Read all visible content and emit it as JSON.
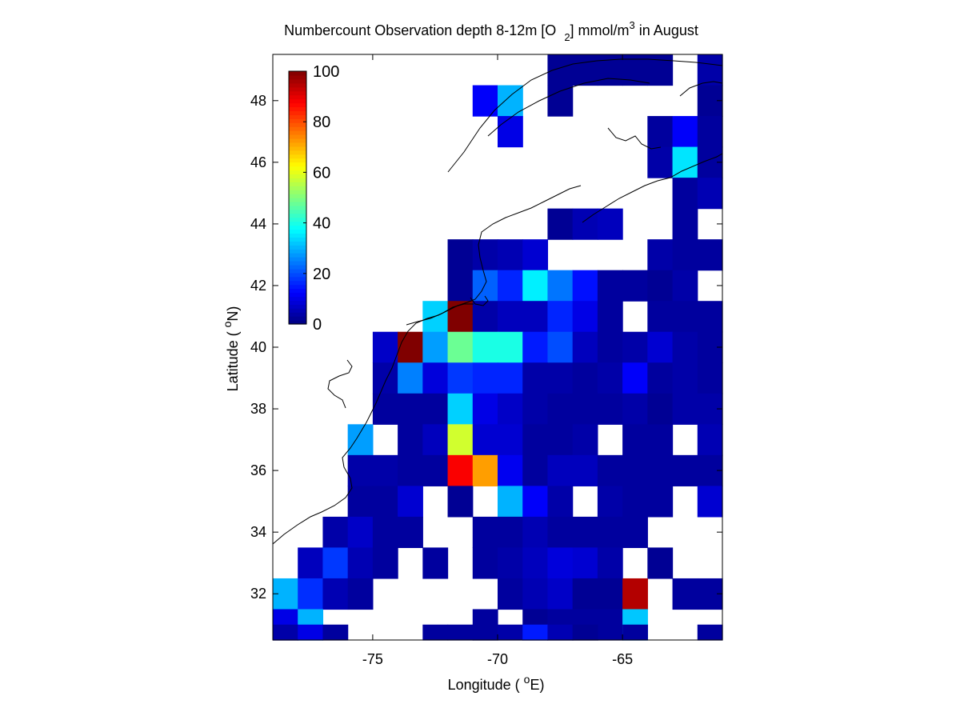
{
  "chart_data": {
    "type": "heatmap",
    "title_parts": {
      "t1": "Numbercount Observation depth 8-12m [O",
      "t2": "2",
      "t3": "] mmol/m",
      "t4": "3",
      "t5": " in August"
    },
    "xlabel_parts": {
      "pre": "Longitude ( ",
      "sup": "o",
      "post": "E)"
    },
    "ylabel_parts": {
      "pre": "Latitude ( ",
      "sup": "o",
      "post": "N)"
    },
    "xlim": [
      -79,
      -61
    ],
    "ylim": [
      30.5,
      49.5
    ],
    "xticks": [
      -75,
      -70,
      -65
    ],
    "yticks": [
      32,
      34,
      36,
      38,
      40,
      42,
      44,
      46,
      48
    ],
    "xtick_labels": [
      "-75",
      "-70",
      "-65"
    ],
    "ytick_labels": [
      "32",
      "34",
      "36",
      "38",
      "40",
      "42",
      "44",
      "46",
      "48"
    ],
    "colorbar": {
      "colormap": "jet",
      "range": [
        0,
        100
      ],
      "ticks": [
        0,
        20,
        40,
        60,
        80,
        100
      ],
      "tick_labels": [
        "0",
        "20",
        "40",
        "60",
        "80",
        "100"
      ]
    },
    "cell_size": [
      1,
      1
    ],
    "x_bin_centers": [
      -78.5,
      -77.5,
      -76.5,
      -75.5,
      -74.5,
      -73.5,
      -72.5,
      -71.5,
      -70.5,
      -69.5,
      -68.5,
      -67.5,
      -66.5,
      -65.5,
      -64.5,
      -63.5,
      -62.5,
      -61.5
    ],
    "y_bin_centers": [
      49,
      48,
      47,
      46,
      45,
      44,
      43,
      42,
      41,
      40,
      39,
      38,
      37,
      36,
      35,
      34,
      33,
      32,
      31,
      30.5
    ],
    "values": [
      [
        null,
        null,
        null,
        null,
        null,
        null,
        null,
        null,
        null,
        null,
        null,
        2,
        2,
        2,
        2,
        2,
        null,
        4
      ],
      [
        null,
        null,
        null,
        null,
        null,
        null,
        null,
        null,
        12,
        30,
        null,
        2,
        null,
        null,
        null,
        null,
        null,
        2
      ],
      [
        null,
        null,
        null,
        null,
        null,
        null,
        null,
        null,
        null,
        10,
        null,
        null,
        null,
        null,
        null,
        3,
        12,
        3
      ],
      [
        null,
        null,
        null,
        null,
        null,
        null,
        null,
        null,
        null,
        null,
        null,
        null,
        null,
        null,
        null,
        4,
        35,
        3
      ],
      [
        null,
        null,
        null,
        null,
        null,
        null,
        null,
        null,
        null,
        null,
        null,
        null,
        null,
        null,
        null,
        null,
        3,
        5
      ],
      [
        null,
        null,
        null,
        null,
        null,
        null,
        null,
        null,
        null,
        null,
        null,
        2,
        5,
        6,
        null,
        null,
        3,
        null
      ],
      [
        null,
        null,
        null,
        null,
        null,
        null,
        null,
        2,
        4,
        5,
        8,
        null,
        null,
        null,
        null,
        4,
        3,
        3
      ],
      [
        null,
        null,
        null,
        null,
        null,
        null,
        null,
        2,
        22,
        16,
        36,
        24,
        14,
        3,
        3,
        2,
        4,
        null
      ],
      [
        null,
        null,
        null,
        null,
        null,
        null,
        33,
        100,
        4,
        6,
        6,
        16,
        10,
        3,
        null,
        3,
        3,
        3
      ],
      [
        null,
        null,
        null,
        null,
        7,
        100,
        28,
        48,
        40,
        40,
        15,
        20,
        6,
        3,
        4,
        8,
        4,
        3
      ],
      [
        null,
        null,
        null,
        null,
        4,
        25,
        9,
        18,
        16,
        16,
        4,
        4,
        3,
        4,
        12,
        3,
        4,
        3
      ],
      [
        null,
        null,
        null,
        null,
        3,
        3,
        3,
        33,
        10,
        7,
        4,
        3,
        3,
        3,
        4,
        2,
        4,
        4
      ],
      [
        null,
        null,
        null,
        28,
        null,
        3,
        6,
        58,
        8,
        8,
        3,
        3,
        4,
        null,
        3,
        3,
        null,
        5
      ],
      [
        null,
        null,
        null,
        4,
        4,
        3,
        3,
        88,
        72,
        11,
        3,
        6,
        6,
        3,
        3,
        3,
        3,
        3
      ],
      [
        null,
        null,
        null,
        3,
        3,
        8,
        null,
        2,
        null,
        30,
        12,
        4,
        null,
        4,
        3,
        3,
        null,
        8
      ],
      [
        null,
        null,
        4,
        7,
        3,
        3,
        null,
        null,
        3,
        3,
        5,
        3,
        3,
        3,
        3,
        null,
        null,
        null
      ],
      [
        null,
        6,
        18,
        5,
        3,
        null,
        3,
        null,
        3,
        4,
        6,
        9,
        8,
        4,
        null,
        2,
        null,
        null
      ],
      [
        30,
        17,
        5,
        3,
        null,
        null,
        null,
        null,
        null,
        3,
        5,
        7,
        2,
        2,
        95,
        null,
        3,
        3
      ],
      [
        10,
        30,
        null,
        null,
        null,
        null,
        null,
        null,
        3,
        null,
        2,
        3,
        3,
        3,
        32,
        null,
        null,
        null
      ],
      [
        4,
        10,
        3,
        null,
        null,
        null,
        3,
        3,
        3,
        4,
        15,
        5,
        2,
        null,
        3,
        null,
        null,
        3
      ]
    ]
  }
}
